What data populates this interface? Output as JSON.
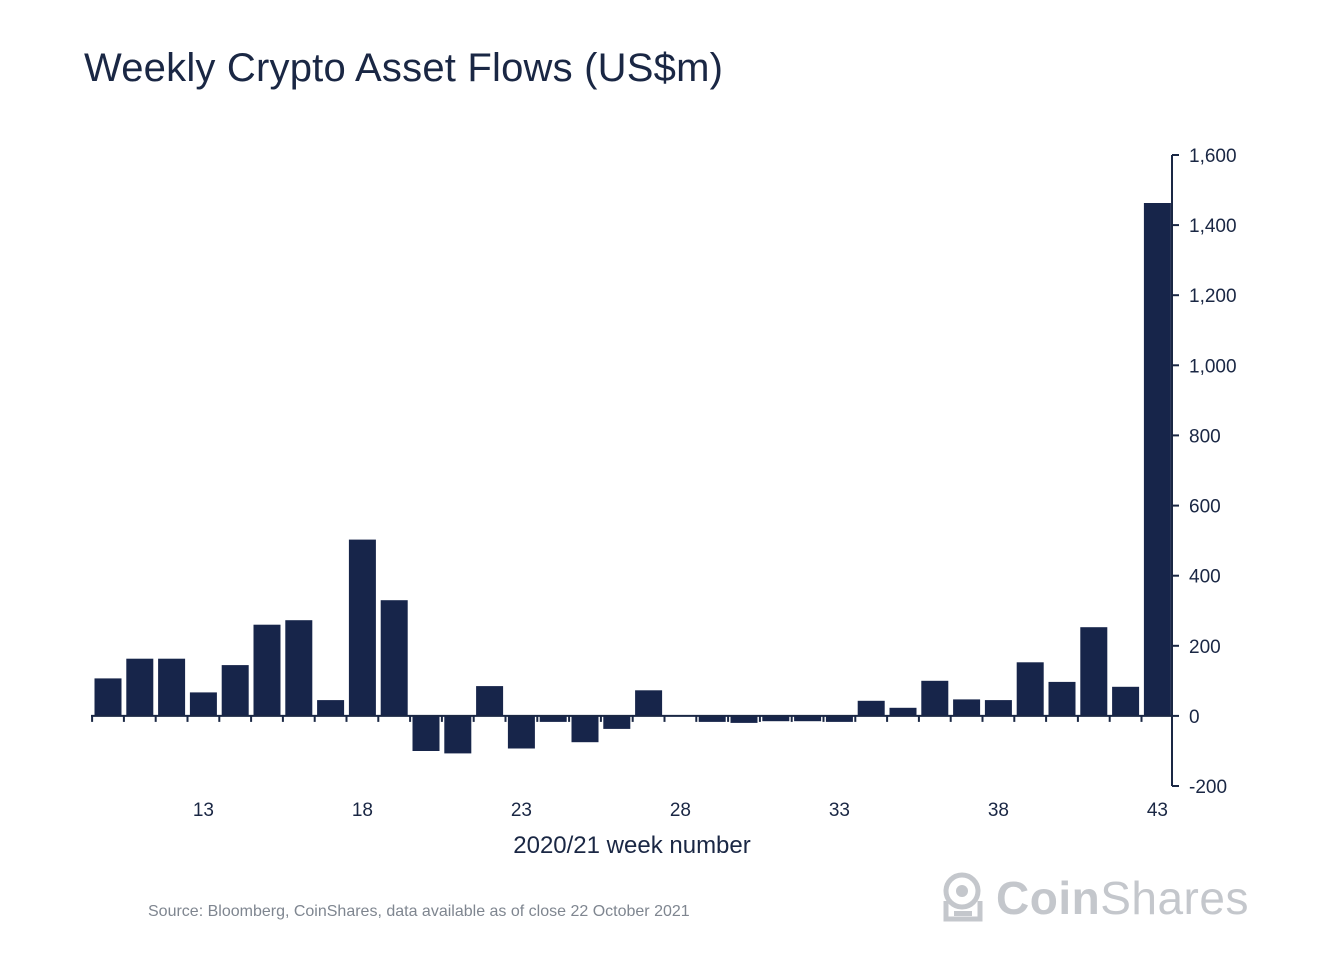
{
  "chart_data": {
    "type": "bar",
    "title": "Weekly Crypto Asset Flows (US$m)",
    "xlabel": "2020/21 week number",
    "ylabel": "",
    "ylim": [
      -200,
      1600
    ],
    "yticks": [
      -200,
      0,
      200,
      400,
      600,
      800,
      1000,
      1200,
      1400,
      1600
    ],
    "ytick_labels": [
      "-200",
      "0",
      "200",
      "400",
      "600",
      "800",
      "1,000",
      "1,200",
      "1,400",
      "1,600"
    ],
    "xtick_labels": [
      "13",
      "18",
      "23",
      "28",
      "33",
      "38",
      "43"
    ],
    "xtick_weeks": [
      13,
      18,
      23,
      28,
      33,
      38,
      43
    ],
    "grid": false,
    "y_axis_side": "right",
    "bar_color": "#17254a",
    "categories": [
      10,
      11,
      12,
      13,
      14,
      15,
      16,
      17,
      18,
      19,
      20,
      21,
      22,
      23,
      24,
      25,
      26,
      27,
      28,
      29,
      30,
      31,
      32,
      33,
      34,
      35,
      36,
      37,
      38,
      39,
      40,
      41,
      42,
      43
    ],
    "values": [
      107,
      163,
      163,
      67,
      145,
      260,
      273,
      45,
      503,
      330,
      -100,
      -107,
      85,
      -93,
      -17,
      -75,
      -37,
      73,
      2,
      -17,
      -20,
      -15,
      -15,
      -17,
      43,
      23,
      100,
      47,
      45,
      153,
      97,
      253,
      83,
      1463
    ]
  },
  "source": "Source: Bloomberg, CoinShares, data available as of close 22 October 2021",
  "logo": {
    "brand_bold": "Coin",
    "brand_light": "Shares",
    "icon": "coinshares-logo-icon"
  }
}
